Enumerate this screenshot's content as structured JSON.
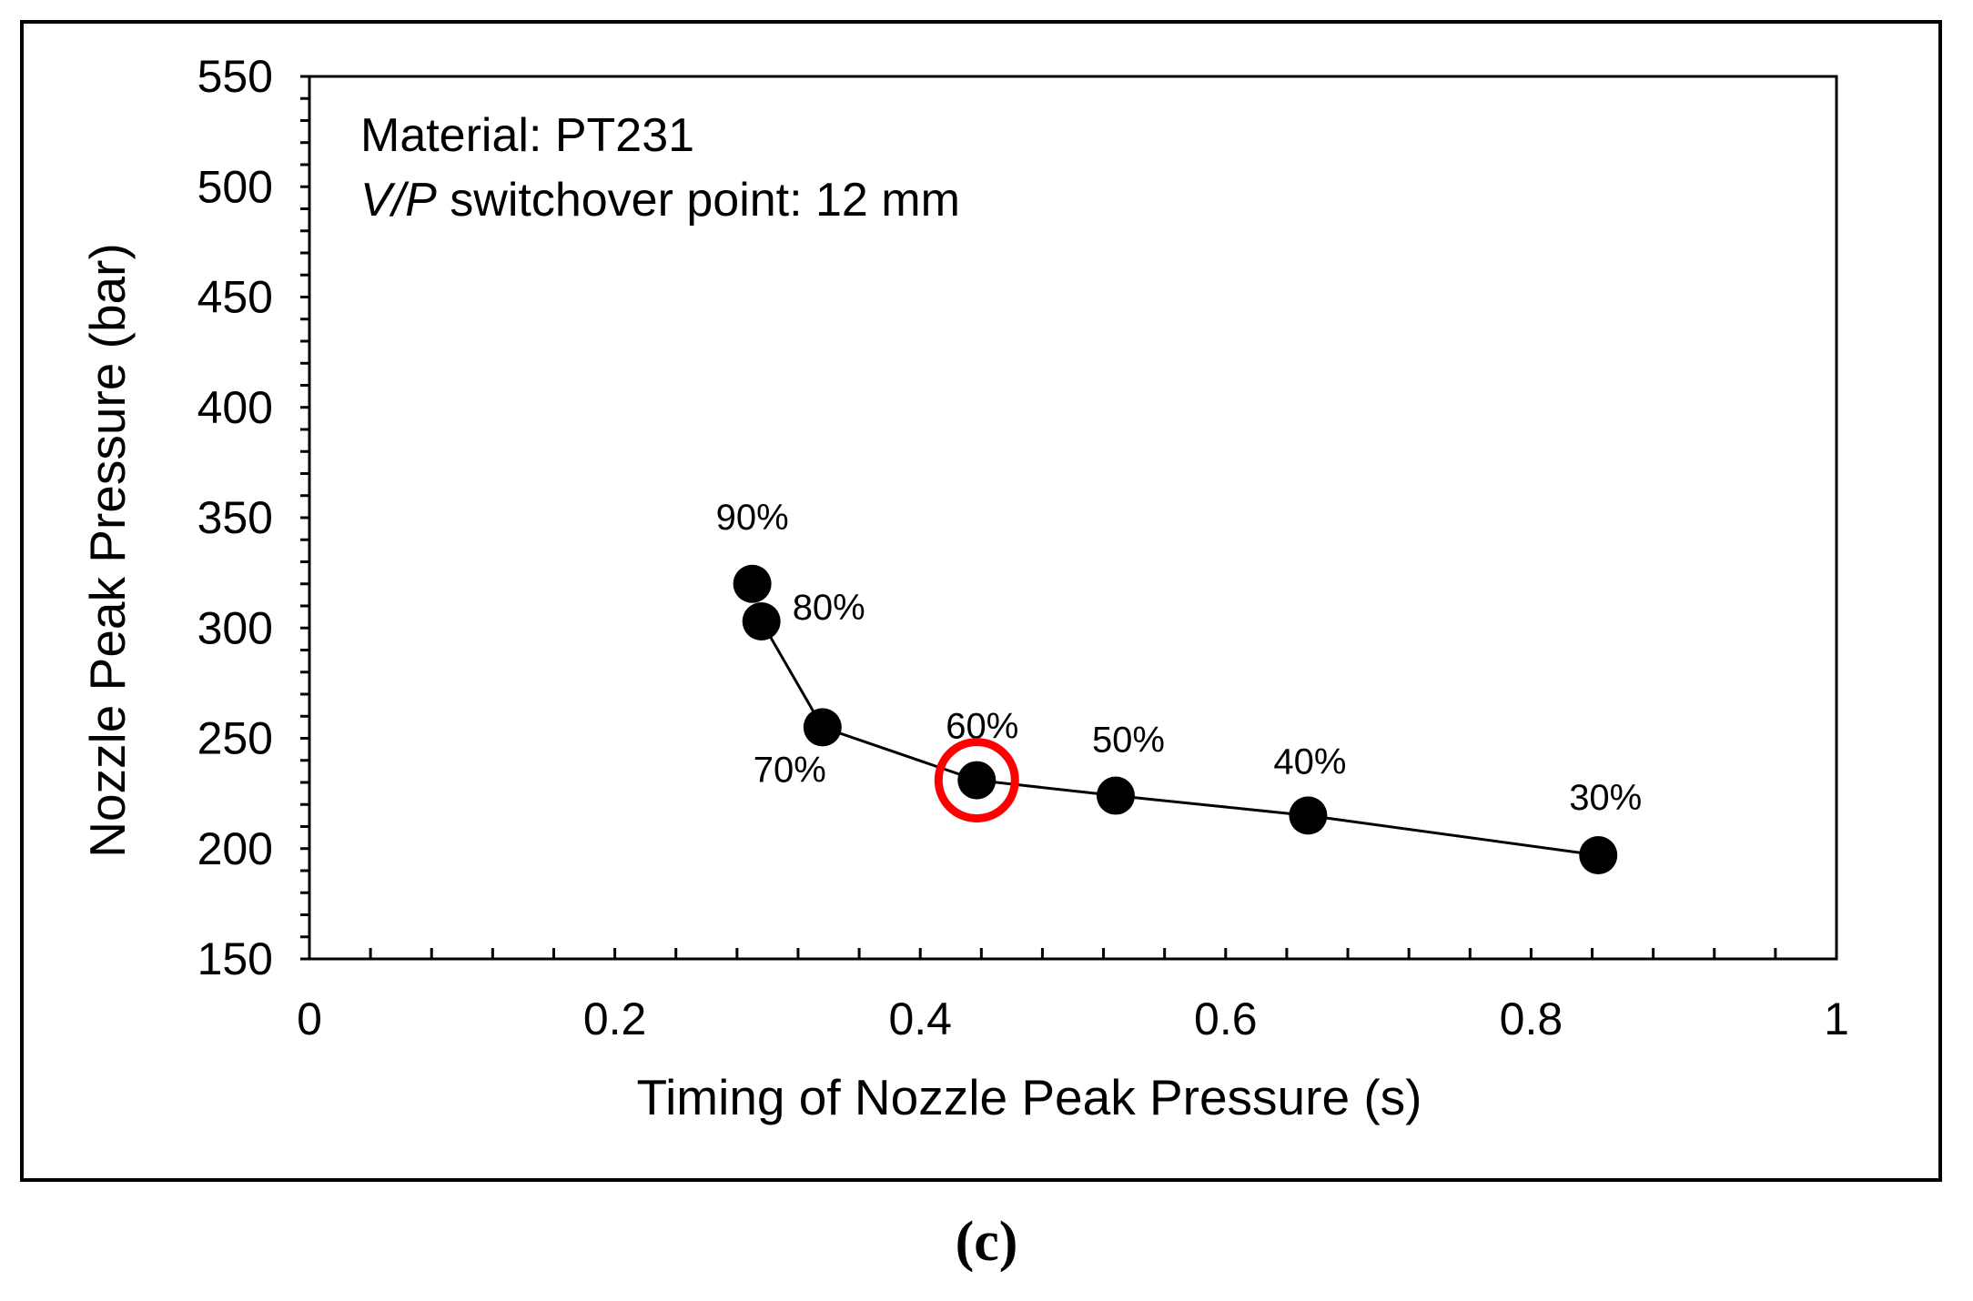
{
  "caption": "(c)",
  "annotations": {
    "material": "Material: PT231",
    "switchover_italic": "V/P",
    "switchover_rest": " switchover point: 12 mm"
  },
  "colors": {
    "line": "#000000",
    "marker": "#000000",
    "highlight": "#ff0000"
  },
  "chart_data": {
    "type": "scatter",
    "title": "",
    "xlabel": "Timing of Nozzle Peak Pressure (s)",
    "ylabel": "Nozzle Peak Pressure (bar)",
    "xlim": [
      0,
      1
    ],
    "ylim": [
      150,
      550
    ],
    "x_ticks": [
      "0",
      "0.2",
      "0.4",
      "0.6",
      "0.8",
      "1"
    ],
    "y_ticks": [
      "150",
      "200",
      "250",
      "300",
      "350",
      "400",
      "450",
      "500",
      "550"
    ],
    "grid": false,
    "series": [
      {
        "points": [
          {
            "label": "90%",
            "x": 0.29,
            "y": 320
          },
          {
            "label": "80%",
            "x": 0.296,
            "y": 303
          },
          {
            "label": "70%",
            "x": 0.336,
            "y": 255
          },
          {
            "label": "60%",
            "x": 0.437,
            "y": 231
          },
          {
            "label": "50%",
            "x": 0.528,
            "y": 224
          },
          {
            "label": "40%",
            "x": 0.654,
            "y": 215
          },
          {
            "label": "30%",
            "x": 0.844,
            "y": 197
          }
        ],
        "line_connects": [
          "80%",
          "70%",
          "60%",
          "50%",
          "40%",
          "30%"
        ]
      }
    ],
    "highlighted_point": "60%"
  }
}
